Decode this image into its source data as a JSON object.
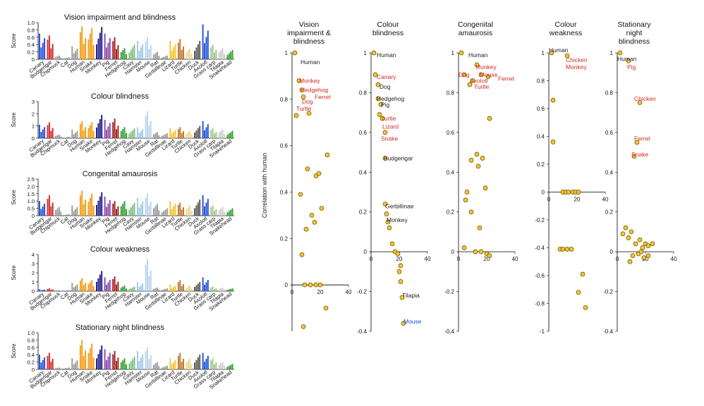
{
  "figure": {
    "ylabel": "Correlation with human"
  },
  "colors": {
    "orange": "#f39c12",
    "blue": "#1f4fd6",
    "red": "#d62728",
    "darkred": "#a01d1d",
    "navy": "#1a1a8c",
    "gold": "#f4c430",
    "green": "#2ca02c",
    "purple": "#8e44ad"
  },
  "bar_categories": [
    "Canary",
    "Budgerigar",
    "Chipmuck",
    "Cat",
    "Dog",
    "Human",
    "Snake",
    "Monkey",
    "Pig",
    "Ferret",
    "Hedgehog",
    "Cavy",
    "Hamster",
    "Mouse",
    "Rat",
    "Gerbillinae",
    "Lizard",
    "Turtle",
    "Chicken",
    "Duck",
    "Axolotl",
    "Grass carp",
    "Tilapia",
    "Snakehead"
  ],
  "chart_data": [
    {
      "type": "bar",
      "title": "Vision impairment and blindness",
      "ylabel": "Score",
      "yticks": [
        "0",
        "0.2",
        "0.4",
        "0.6",
        "0.8",
        "1.0"
      ],
      "ylim": [
        0,
        1.0
      ],
      "categories": [
        "Canary",
        "Budgerigar",
        "Chipmuck",
        "Cat",
        "Dog",
        "Human",
        "Snake",
        "Monkey",
        "Pig",
        "Ferret",
        "Hedgehog",
        "Cavy",
        "Hamster",
        "Mouse",
        "Rat",
        "Gerbillinae",
        "Lizard",
        "Turtle",
        "Chicken",
        "Duck",
        "Axolotl",
        "Grass carp",
        "Tilapia",
        "Snakehead"
      ],
      "values": [
        0.7,
        0.65,
        0.1,
        0.05,
        0.35,
        0.9,
        0.85,
        0.88,
        0.7,
        0.6,
        0.3,
        0.4,
        0.5,
        0.6,
        0.2,
        0.1,
        0.5,
        0.55,
        0.3,
        0.5,
        0.95,
        0.4,
        0.3,
        0.25
      ]
    },
    {
      "type": "bar",
      "title": "Colour blindness",
      "ylabel": "Score",
      "yticks": [
        "0",
        "1",
        "2",
        "3"
      ],
      "ylim": [
        0,
        3
      ],
      "categories": [
        "Canary",
        "Budgerigar",
        "Chipmuck",
        "Cat",
        "Dog",
        "Human",
        "Snake",
        "Monkey",
        "Pig",
        "Ferret",
        "Hedgehog",
        "Cavy",
        "Hamster",
        "Mouse",
        "Rat",
        "Gerbillinae",
        "Lizard",
        "Turtle",
        "Chicken",
        "Duck",
        "Axolotl",
        "Grass carp",
        "Tilapia",
        "Snakehead"
      ],
      "values": [
        1.1,
        1.3,
        0.3,
        0.1,
        0.7,
        1.4,
        1.3,
        1.9,
        1.5,
        1.6,
        0.9,
        0.8,
        0.9,
        2.2,
        0.5,
        0.4,
        0.8,
        0.9,
        0.6,
        1.0,
        1.4,
        0.8,
        0.7,
        0.6
      ]
    },
    {
      "type": "bar",
      "title": "Congenital amaurosis",
      "ylabel": "Score",
      "yticks": [
        "0",
        "0.5",
        "1.0",
        "1.5",
        "2.0",
        "2.5"
      ],
      "ylim": [
        0,
        2.5
      ],
      "categories": [
        "Canary",
        "Budgerigar",
        "Chipmuck",
        "Cat",
        "Dog",
        "Human",
        "Snake",
        "Monkey",
        "Pig",
        "Ferret",
        "Hedgehog",
        "Cavy",
        "Hamster",
        "Mouse",
        "Rat",
        "Gerbillinae",
        "Lizard",
        "Turtle",
        "Chicken",
        "Duck",
        "Axolotl",
        "Grass carp",
        "Tilapia",
        "Snakehead"
      ],
      "values": [
        1.0,
        1.4,
        0.6,
        0.1,
        0.7,
        1.7,
        1.5,
        1.6,
        1.3,
        1.0,
        1.0,
        0.9,
        1.2,
        1.5,
        0.8,
        0.5,
        1.0,
        0.9,
        0.7,
        1.1,
        1.4,
        0.7,
        0.6,
        0.5
      ]
    },
    {
      "type": "bar",
      "title": "Colour weakness",
      "ylabel": "Score",
      "yticks": [
        "0",
        "1",
        "2",
        "3",
        "4"
      ],
      "ylim": [
        0,
        4
      ],
      "categories": [
        "Canary",
        "Budgerigar",
        "Chipmuck",
        "Cat",
        "Dog",
        "Human",
        "Snake",
        "Monkey",
        "Pig",
        "Ferret",
        "Hedgehog",
        "Cavy",
        "Hamster",
        "Mouse",
        "Rat",
        "Gerbillinae",
        "Lizard",
        "Turtle",
        "Chicken",
        "Duck",
        "Axolotl",
        "Grass carp",
        "Tilapia",
        "Snakehead"
      ],
      "values": [
        0.2,
        0.3,
        0.1,
        0.1,
        0.9,
        1.4,
        1.2,
        2.2,
        1.5,
        1.6,
        0.6,
        0.5,
        1.0,
        3.5,
        0.4,
        0.3,
        0.7,
        1.2,
        0.6,
        1.0,
        1.5,
        0.5,
        0.4,
        0.3
      ]
    },
    {
      "type": "bar",
      "title": "Stationary night blindness",
      "ylabel": "Score",
      "yticks": [
        "0",
        "0.2",
        "0.4",
        "0.6",
        "0.8",
        "1.0"
      ],
      "ylim": [
        0,
        1.0
      ],
      "categories": [
        "Canary",
        "Budgerigar",
        "Chipmuck",
        "Cat",
        "Dog",
        "Human",
        "Snake",
        "Monkey",
        "Pig",
        "Ferret",
        "Hedgehog",
        "Cavy",
        "Hamster",
        "Mouse",
        "Rat",
        "Gerbillinae",
        "Lizard",
        "Turtle",
        "Chicken",
        "Duck",
        "Axolotl",
        "Grass carp",
        "Tilapia",
        "Snakehead"
      ],
      "values": [
        0.4,
        0.45,
        0.05,
        0.05,
        0.3,
        0.8,
        0.7,
        0.65,
        0.55,
        0.5,
        0.3,
        0.35,
        0.5,
        0.6,
        0.2,
        0.1,
        0.3,
        0.45,
        0.3,
        0.4,
        0.45,
        0.3,
        0.2,
        0.15
      ]
    },
    {
      "type": "scatter",
      "title": "Vision impairment & blindness",
      "xlim": [
        0,
        40
      ],
      "ylim": [
        -0.2,
        1.0
      ],
      "xticks": [
        "0",
        "20",
        "40"
      ],
      "yticks": [
        "0",
        "0.2",
        "0.4",
        "0.6",
        "0.8",
        "1"
      ],
      "ylabel": "Correlation with human",
      "points": [
        [
          2,
          1.0
        ],
        [
          5,
          0.88
        ],
        [
          7,
          0.84
        ],
        [
          8,
          0.81
        ],
        [
          12,
          0.74
        ],
        [
          3,
          0.73
        ],
        [
          6,
          0.39
        ],
        [
          11,
          0.5
        ],
        [
          17,
          0.47
        ],
        [
          19,
          0.48
        ],
        [
          25,
          0.56
        ],
        [
          16,
          0.27
        ],
        [
          21,
          0.33
        ],
        [
          14,
          0.3
        ],
        [
          10,
          0.24
        ],
        [
          7,
          0.13
        ],
        [
          9,
          0.0
        ],
        [
          13,
          0.0
        ],
        [
          17,
          0.0
        ],
        [
          20,
          0.0
        ],
        [
          24,
          -0.1
        ],
        [
          8,
          -0.18
        ]
      ],
      "labels": [
        {
          "text": "Human",
          "color": "#222222",
          "x": 6,
          "y": 0.96
        },
        {
          "text": "Monkey",
          "color": "#d62728",
          "x": 5,
          "y": 0.88
        },
        {
          "text": "Hedgehog",
          "color": "#d62728",
          "x": 6,
          "y": 0.84
        },
        {
          "text": "Ferret",
          "color": "#d62728",
          "x": 16,
          "y": 0.81
        },
        {
          "text": "Dog",
          "color": "#d62728",
          "x": 7,
          "y": 0.79
        },
        {
          "text": "Turtle",
          "color": "#d62728",
          "x": 3,
          "y": 0.76
        }
      ]
    },
    {
      "type": "scatter",
      "title": "Colour blindness",
      "xlim": [
        0,
        40
      ],
      "ylim": [
        -0.4,
        1.0
      ],
      "xticks": [
        "0",
        "20",
        "40"
      ],
      "yticks": [
        "-0.4",
        "-0.2",
        "0",
        "0.2",
        "0.4",
        "0.6",
        "0.8",
        "1"
      ],
      "points": [
        [
          2,
          1.0
        ],
        [
          3,
          0.89
        ],
        [
          5,
          0.84
        ],
        [
          5,
          0.77
        ],
        [
          7,
          0.74
        ],
        [
          6,
          0.69
        ],
        [
          8,
          0.67
        ],
        [
          10,
          0.6
        ],
        [
          10,
          0.47
        ],
        [
          10,
          0.24
        ],
        [
          11,
          0.19
        ],
        [
          12,
          0.15
        ],
        [
          13,
          0.12
        ],
        [
          15,
          0.04
        ],
        [
          17,
          0.0
        ],
        [
          19,
          -0.01
        ],
        [
          21,
          -0.07
        ],
        [
          20,
          -0.1
        ],
        [
          21,
          -0.15
        ],
        [
          22,
          -0.23
        ],
        [
          23,
          -0.36
        ]
      ],
      "labels": [
        {
          "text": "Human",
          "color": "#222222",
          "x": 4,
          "y": 0.99
        },
        {
          "text": "Canary",
          "color": "#d62728",
          "x": 4,
          "y": 0.88
        },
        {
          "text": "Dog",
          "color": "#222222",
          "x": 6,
          "y": 0.83
        },
        {
          "text": "Hedgehog",
          "color": "#222222",
          "x": 4,
          "y": 0.77
        },
        {
          "text": "Pig",
          "color": "#222222",
          "x": 7,
          "y": 0.74
        },
        {
          "text": "Turtle",
          "color": "#d62728",
          "x": 7,
          "y": 0.67
        },
        {
          "text": "Lizard",
          "color": "#d62728",
          "x": 8,
          "y": 0.63
        },
        {
          "text": "Snake",
          "color": "#d62728",
          "x": 7,
          "y": 0.57
        },
        {
          "text": "Budgerigar",
          "color": "#222222",
          "x": 9,
          "y": 0.47
        },
        {
          "text": "Gerbillinae",
          "color": "#222222",
          "x": 10,
          "y": 0.23
        },
        {
          "text": "Monkey",
          "color": "#222222",
          "x": 11,
          "y": 0.16
        },
        {
          "text": "Tilapia",
          "color": "#222222",
          "x": 22,
          "y": -0.22
        },
        {
          "text": "Mouse",
          "color": "#1f4fd6",
          "x": 23,
          "y": -0.35
        }
      ]
    },
    {
      "type": "scatter",
      "title": "Congenital amaurosis",
      "xlim": [
        0,
        40
      ],
      "ylim": [
        -0.4,
        1.0
      ],
      "xticks": [
        "0",
        "20",
        "40"
      ],
      "yticks": [
        "-0.4",
        "-0.2",
        "0",
        "0.2",
        "0.4",
        "0.6",
        "0.8",
        "1"
      ],
      "points": [
        [
          2,
          1.0
        ],
        [
          13,
          0.94
        ],
        [
          4,
          0.89
        ],
        [
          16,
          0.89
        ],
        [
          21,
          0.88
        ],
        [
          10,
          0.86
        ],
        [
          8,
          0.84
        ],
        [
          22,
          0.67
        ],
        [
          13,
          0.49
        ],
        [
          17,
          0.47
        ],
        [
          9,
          0.46
        ],
        [
          14,
          0.43
        ],
        [
          6,
          0.3
        ],
        [
          19,
          0.32
        ],
        [
          5,
          0.26
        ],
        [
          9,
          0.2
        ],
        [
          15,
          0.12
        ],
        [
          4,
          0.02
        ],
        [
          12,
          0.0
        ],
        [
          16,
          0.0
        ],
        [
          20,
          -0.01
        ],
        [
          22,
          -0.02
        ]
      ],
      "labels": [
        {
          "text": "Human",
          "color": "#222222",
          "x": 7,
          "y": 0.99
        },
        {
          "text": "Monkey",
          "color": "#d62728",
          "x": 12,
          "y": 0.93
        },
        {
          "text": "Dog",
          "color": "#d62728",
          "x": 0,
          "y": 0.89
        },
        {
          "text": "Mouse",
          "color": "#d62728",
          "x": 15,
          "y": 0.89
        },
        {
          "text": "Ferret",
          "color": "#d62728",
          "x": 28,
          "y": 0.87
        },
        {
          "text": "Axolotl",
          "color": "#d62728",
          "x": 8,
          "y": 0.86
        },
        {
          "text": "Turtle",
          "color": "#d62728",
          "x": 11,
          "y": 0.83
        }
      ]
    },
    {
      "type": "scatter",
      "title": "Colour weakness",
      "xlim": [
        0,
        40
      ],
      "ylim": [
        -1.0,
        1.0
      ],
      "xticks": [
        "0",
        "20",
        "40"
      ],
      "yticks": [
        "-1",
        "-0.8",
        "-0.6",
        "-0.4",
        "-0.2",
        "0",
        "0.2",
        "0.4",
        "0.6",
        "0.8",
        "1"
      ],
      "points": [
        [
          2,
          1.0
        ],
        [
          13,
          0.98
        ],
        [
          3,
          0.66
        ],
        [
          3,
          0.36
        ],
        [
          10,
          0.0
        ],
        [
          12,
          0.0
        ],
        [
          14,
          0.0
        ],
        [
          17,
          0.0
        ],
        [
          19,
          0.0
        ],
        [
          21,
          0.0
        ],
        [
          8,
          -0.41
        ],
        [
          10,
          -0.41
        ],
        [
          13,
          -0.41
        ],
        [
          16,
          -0.41
        ],
        [
          24,
          -0.59
        ],
        [
          21,
          -0.72
        ],
        [
          26,
          -0.83
        ]
      ],
      "labels": [
        {
          "text": "Human",
          "color": "#222222",
          "x": 0,
          "y": 1.02
        },
        {
          "text": "Chicken",
          "color": "#d62728",
          "x": 12,
          "y": 0.95
        },
        {
          "text": "Monkey",
          "color": "#d62728",
          "x": 12,
          "y": 0.9
        }
      ]
    },
    {
      "type": "scatter",
      "title": "Stationary night blindness",
      "xlim": [
        0,
        40
      ],
      "ylim": [
        -0.4,
        1.0
      ],
      "xticks": [
        "0",
        "20",
        "40"
      ],
      "yticks": [
        "-0.4",
        "-0.2",
        "0",
        "0.2",
        "0.4",
        "0.6",
        "0.8",
        "1"
      ],
      "points": [
        [
          2,
          1.0
        ],
        [
          8,
          0.96
        ],
        [
          16,
          0.75
        ],
        [
          14,
          0.55
        ],
        [
          12,
          0.48
        ],
        [
          6,
          0.12
        ],
        [
          10,
          0.1
        ],
        [
          4,
          0.09
        ],
        [
          8,
          0.07
        ],
        [
          16,
          0.06
        ],
        [
          13,
          0.04
        ],
        [
          20,
          0.04
        ],
        [
          22,
          0.03
        ],
        [
          25,
          0.04
        ],
        [
          18,
          0.02
        ],
        [
          15,
          -0.01
        ],
        [
          11,
          -0.02
        ],
        [
          19,
          -0.03
        ],
        [
          22,
          -0.02
        ],
        [
          9,
          -0.05
        ],
        [
          17,
          0.0
        ]
      ],
      "labels": [
        {
          "text": "Human",
          "color": "#222222",
          "x": 0,
          "y": 0.97
        },
        {
          "text": "Pig",
          "color": "#d62728",
          "x": 7,
          "y": 0.93
        },
        {
          "text": "Chicken",
          "color": "#d62728",
          "x": 12,
          "y": 0.77
        },
        {
          "text": "Ferret",
          "color": "#d62728",
          "x": 12,
          "y": 0.57
        },
        {
          "text": "Snake",
          "color": "#d62728",
          "x": 10,
          "y": 0.49
        }
      ]
    }
  ]
}
